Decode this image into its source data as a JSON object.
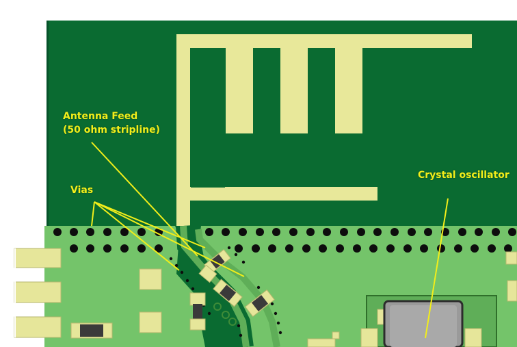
{
  "labels": {
    "antenna_feed_line1": "Antenna Feed",
    "antenna_feed_line2": "(50 ohm stripline)",
    "vias": "Vias",
    "crystal_oscillator": "Crystal oscillator"
  },
  "colors": {
    "board_dark": "#0a6b31",
    "board_light": "#74c46a",
    "copper_trace": "#e8e89a",
    "pad": "#e6e69a",
    "via_hole": "#0d0d0d",
    "annotation": "#f2ee1a",
    "crystal_body": "#9a9a9a"
  },
  "icons": {
    "via": "via-hole-icon",
    "smd_component": "smd-resistor-icon",
    "crystal": "crystal-package-icon"
  }
}
